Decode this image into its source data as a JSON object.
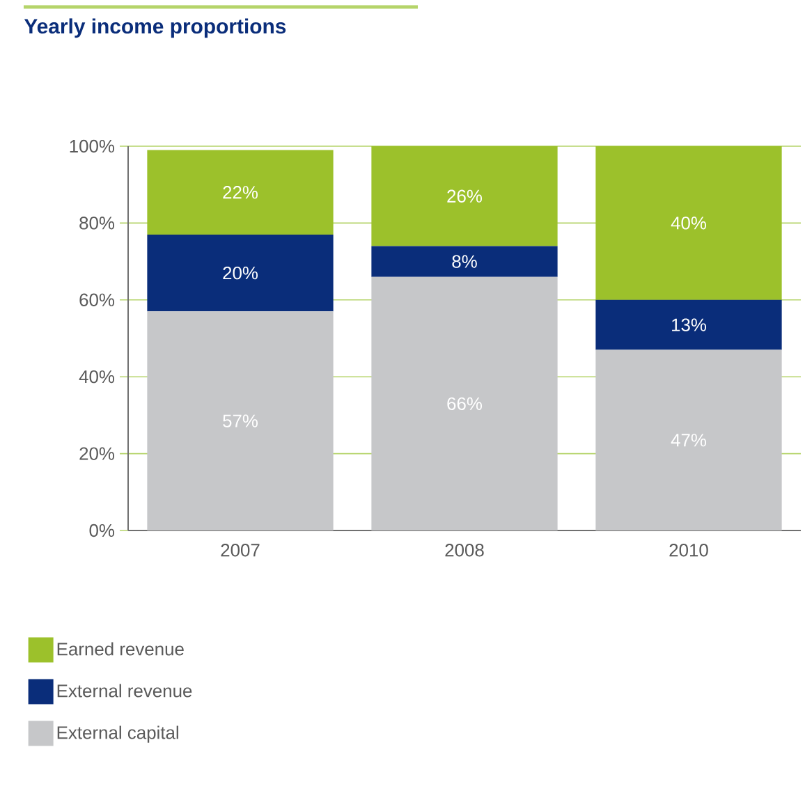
{
  "chart_data": {
    "type": "bar",
    "stacked": true,
    "title": "Yearly income proportions",
    "categories": [
      "2007",
      "2008",
      "2010"
    ],
    "series": [
      {
        "name": "External capital",
        "color": "#c6c7c9",
        "values": [
          57,
          66,
          47
        ],
        "value_labels": [
          "57%",
          "66%",
          "47%"
        ]
      },
      {
        "name": "External revenue",
        "color": "#0a2d7a",
        "values": [
          20,
          8,
          13
        ],
        "value_labels": [
          "20%",
          "8%",
          "13%"
        ]
      },
      {
        "name": "Earned revenue",
        "color": "#9cc12b",
        "values": [
          22,
          26,
          40
        ],
        "value_labels": [
          "22%",
          "26%",
          "40%"
        ]
      }
    ],
    "ylim": [
      0,
      100
    ],
    "yticks": [
      {
        "value": 0,
        "label": "0%"
      },
      {
        "value": 20,
        "label": "20%"
      },
      {
        "value": 40,
        "label": "40%"
      },
      {
        "value": 60,
        "label": "60%"
      },
      {
        "value": 80,
        "label": "80%"
      },
      {
        "value": 100,
        "label": "100%"
      }
    ],
    "grid": "y",
    "legend": "bottom left"
  }
}
